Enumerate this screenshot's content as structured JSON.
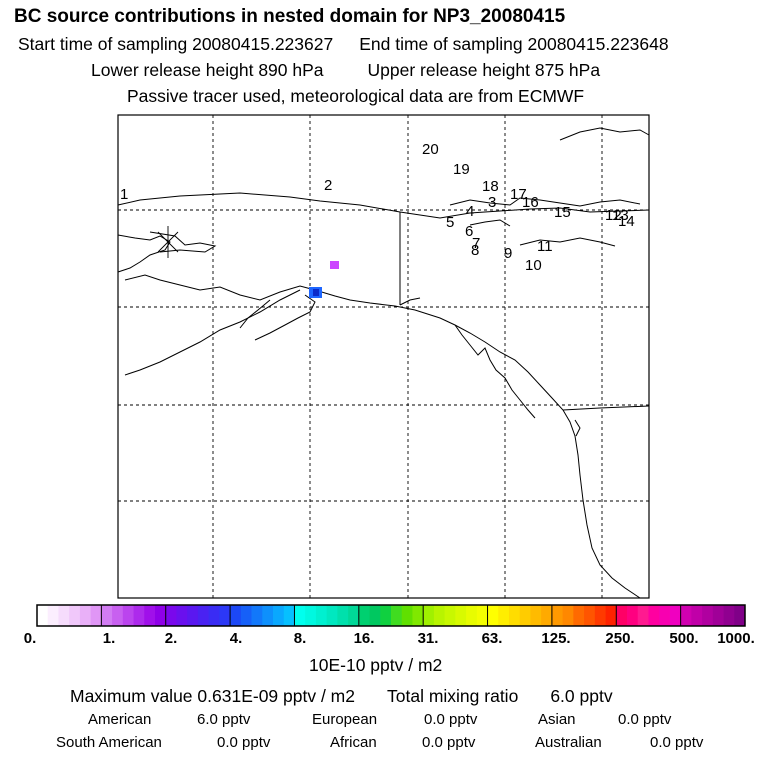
{
  "header": {
    "title": "BC  source contributions in nested domain for NP3_20080415",
    "start_label": "Start time of sampling 20080415.223627",
    "end_label": "End time of sampling 20080415.223648",
    "lower_label": "Lower release height  890 hPa",
    "upper_label": "Upper release height  875 hPa",
    "info": "Passive tracer used, meteorological data are from ECMWF"
  },
  "map": {
    "trajectory_labels": [
      "1",
      "2",
      "3",
      "4",
      "5",
      "6",
      "7",
      "8",
      "9",
      "10",
      "11",
      "12",
      "13",
      "14",
      "15",
      "16",
      "17",
      "18",
      "19",
      "20"
    ],
    "cells": [
      {
        "cell": "interior-alaska",
        "color": "#cc44ff"
      },
      {
        "cell": "anchorage-outer",
        "color": "#1e66ff"
      },
      {
        "cell": "anchorage-inner",
        "color": "#0b2ac8"
      }
    ]
  },
  "colorbar": {
    "ticks": [
      "0.",
      "1.",
      "2.",
      "4.",
      "8.",
      "16.",
      "31.",
      "63.",
      "125.",
      "250.",
      "500.",
      "1000."
    ],
    "unit": "10E-10 pptv / m2",
    "colors": [
      [
        "#ffffff",
        "#fbeefe",
        "#f6dcfc",
        "#f0c8fa",
        "#e9b0f8",
        "#e096f6"
      ],
      [
        "#d27cf3",
        "#c860f0",
        "#bb44ee",
        "#ad2aec",
        "#a010ea",
        "#8f00e8"
      ],
      [
        "#7a08ec",
        "#6a10ee",
        "#5a18f0",
        "#4a22f2",
        "#3a2cf4",
        "#2c38f6"
      ],
      [
        "#1c48f6",
        "#1660f8",
        "#1278fa",
        "#0e90fc",
        "#0aa8fe",
        "#06c0ff"
      ],
      [
        "#00ffee",
        "#00f8e0",
        "#00f0d0",
        "#00e8c0",
        "#00e0ac",
        "#00d898"
      ],
      [
        "#00d070",
        "#00c860",
        "#10d040",
        "#40dc20",
        "#60e000",
        "#80e800"
      ],
      [
        "#a0f000",
        "#b8f400",
        "#c8f800",
        "#d8fa00",
        "#e8fc00",
        "#f4fe00"
      ],
      [
        "#ffff00",
        "#ffee00",
        "#ffdd00",
        "#ffcc00",
        "#ffbb00",
        "#ffaa00"
      ],
      [
        "#ff9900",
        "#ff8800",
        "#ff6a00",
        "#ff5500",
        "#ff3a00",
        "#ff2200"
      ],
      [
        "#ff0066",
        "#ff0080",
        "#ff1a90",
        "#ff00a0",
        "#f800b0",
        "#f000c0"
      ],
      [
        "#d000b0",
        "#c000a8",
        "#b000a0",
        "#a00098",
        "#900090",
        "#800088"
      ]
    ]
  },
  "stats": {
    "max_text": "Maximum value  0.631E-09 pptv / m2",
    "total_label": "Total mixing ratio",
    "total_value": "6.0 pptv",
    "regions": [
      {
        "name": "American",
        "value": "6.0 pptv"
      },
      {
        "name": "European",
        "value": "0.0 pptv"
      },
      {
        "name": "Asian",
        "value": "0.0 pptv"
      },
      {
        "name": "South American",
        "value": "0.0 pptv"
      },
      {
        "name": "African",
        "value": "0.0 pptv"
      },
      {
        "name": "Australian",
        "value": "0.0 pptv"
      }
    ]
  },
  "chart_data": {
    "type": "heatmap",
    "title": "BC  source contributions in nested domain for NP3_20080415",
    "colorbar_ticks": [
      0,
      1,
      2,
      4,
      8,
      16,
      31,
      63,
      125,
      250,
      500,
      1000
    ],
    "unit": "10E-10 pptv / m2",
    "max_value_pptv_per_m2": 6.31e-10,
    "total_mixing_ratio_pptv": 6.0,
    "contributions_pptv": {
      "American": 6.0,
      "European": 0.0,
      "Asian": 0.0,
      "South American": 0.0,
      "African": 0.0,
      "Australian": 0.0
    }
  }
}
